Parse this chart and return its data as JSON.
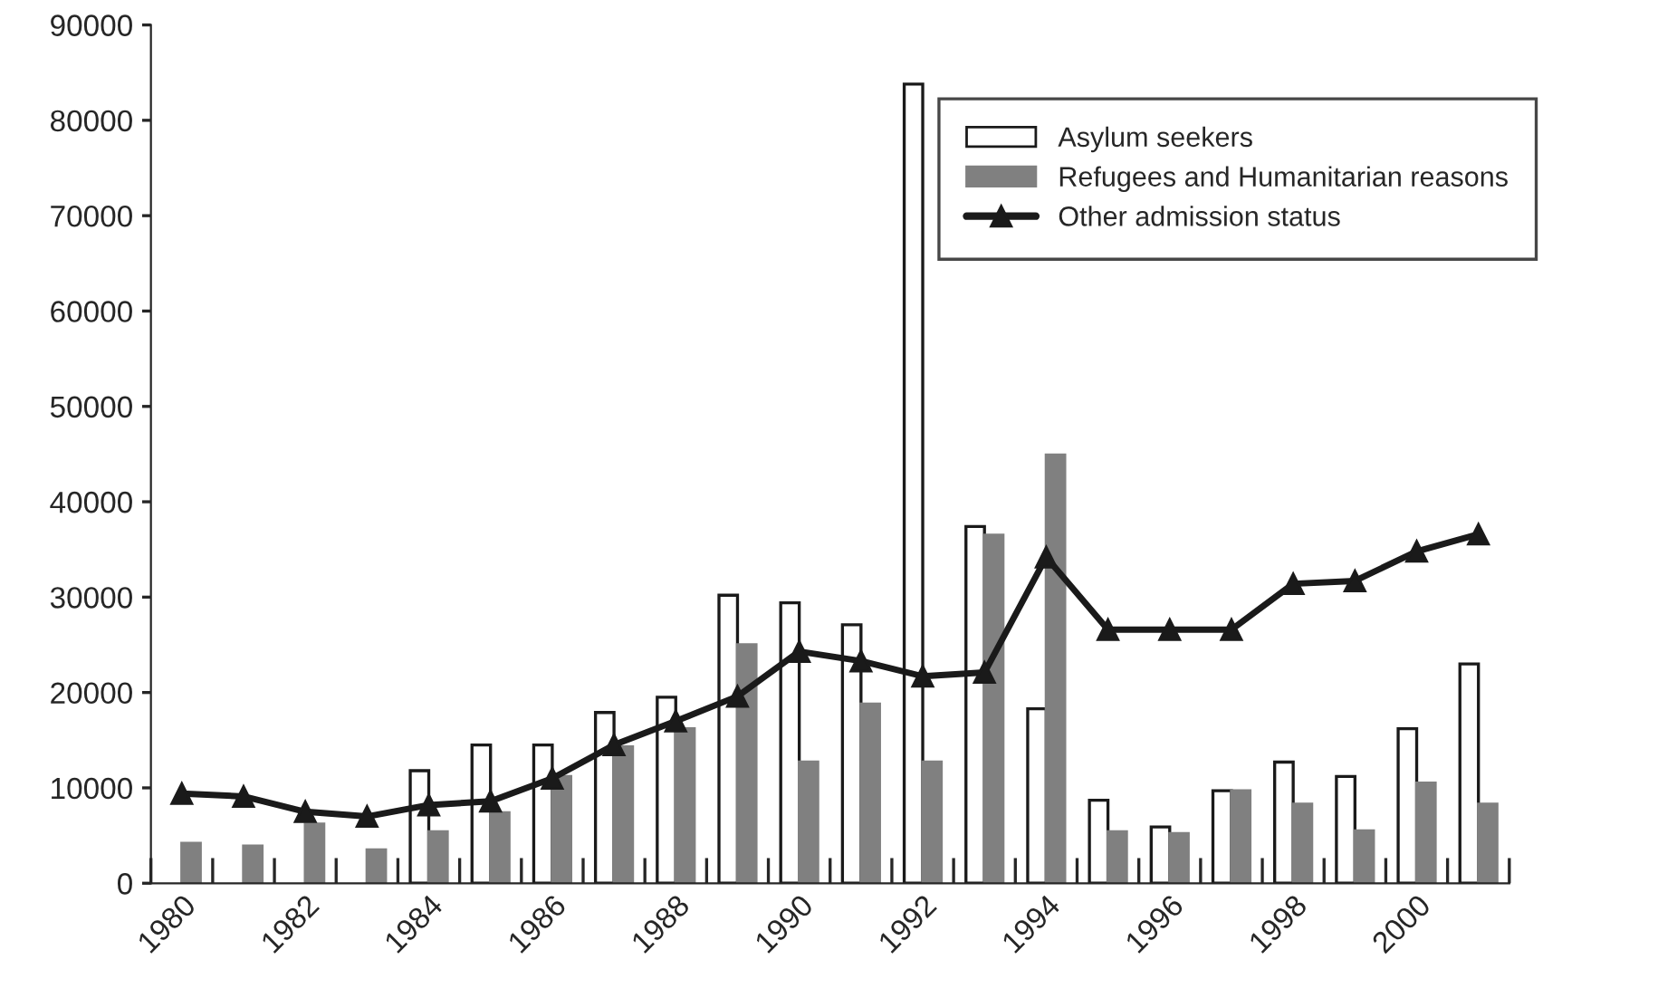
{
  "chart_data": {
    "type": "bar",
    "categories": [
      "1980",
      null,
      "1982",
      null,
      "1984",
      null,
      "1986",
      null,
      "1988",
      null,
      "1990",
      null,
      "1992",
      null,
      "1994",
      null,
      "1996",
      null,
      "1998",
      null,
      "2000",
      null
    ],
    "series": [
      {
        "name": "Asylum seekers",
        "color": "#ffffff",
        "values": [
          null,
          null,
          null,
          null,
          11800,
          14500,
          14500,
          17900,
          19500,
          30200,
          29400,
          27100,
          83800,
          37400,
          18300,
          8700,
          5900,
          9700,
          12700,
          11200,
          16200,
          23000
        ]
      },
      {
        "name": "Refugees and Humanitarian reasons",
        "color": "#808080",
        "values": [
          4200,
          3900,
          6200,
          3500,
          5400,
          7400,
          11200,
          14300,
          16200,
          25000,
          12700,
          18800,
          12700,
          36500,
          44900,
          5400,
          5200,
          9700,
          8300,
          5500,
          10500,
          8300
        ]
      },
      {
        "name": "Other admission status",
        "type": "line",
        "color": "#1a1a1a",
        "marker": "triangle",
        "line_style": "solid",
        "values": [
          9400,
          9100,
          7500,
          7000,
          8200,
          8600,
          11000,
          14500,
          17000,
          19600,
          24300,
          23300,
          21700,
          22100,
          34200,
          26600,
          26600,
          26600,
          31400,
          31700,
          34800,
          36600
        ]
      }
    ],
    "ylim": [
      0,
      90000
    ],
    "yticks": [
      0,
      10000,
      20000,
      30000,
      40000,
      50000,
      60000,
      70000,
      80000,
      90000
    ],
    "grid": false,
    "legend": "top right"
  }
}
